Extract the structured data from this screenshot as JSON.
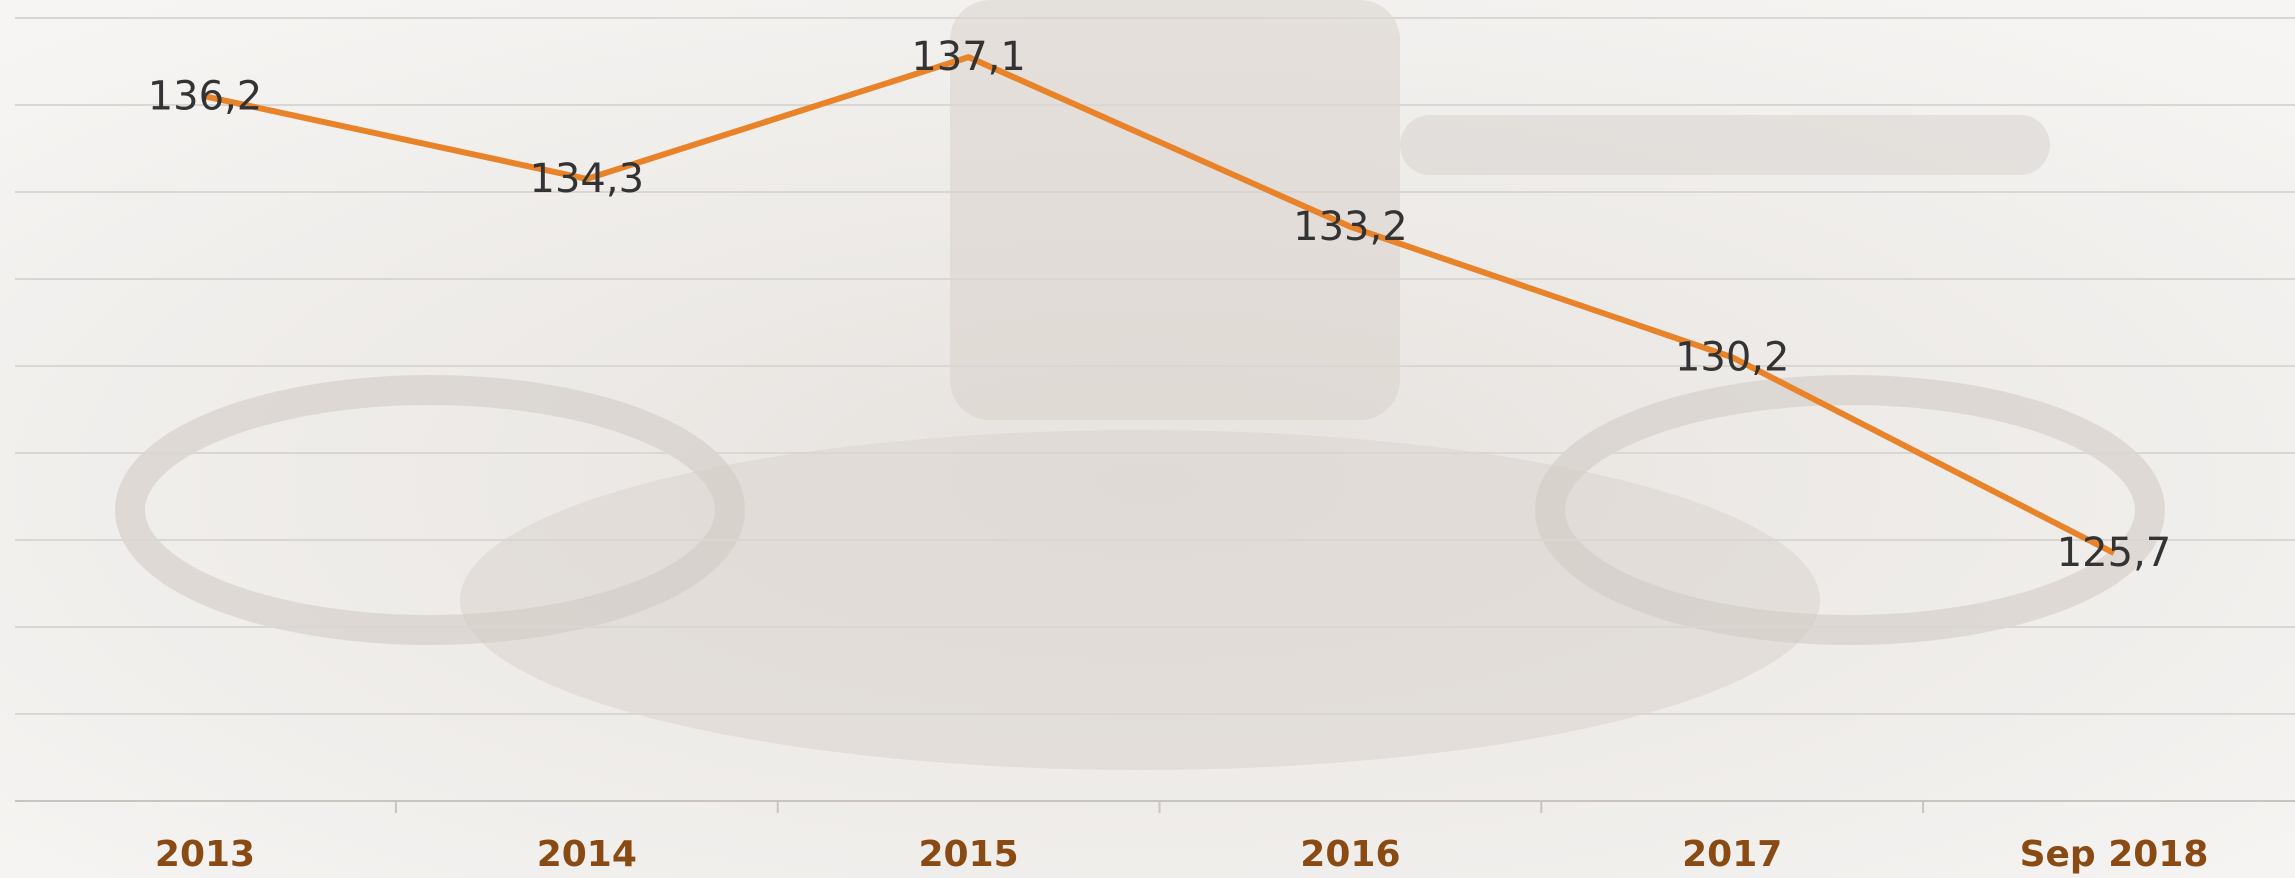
{
  "chart_data": {
    "type": "line",
    "categories": [
      "2013",
      "2014",
      "2015",
      "2016",
      "2017",
      "Sep 2018"
    ],
    "series": [
      {
        "color": "#e8832a",
        "values": [
          136.2,
          134.3,
          137.1,
          133.2,
          130.2,
          125.7
        ],
        "value_labels": [
          "136,2",
          "134,3",
          "137,1",
          "133,2",
          "130,2",
          "125,7"
        ]
      }
    ],
    "ylim": [
      120,
      138
    ],
    "yticks": [
      120,
      122,
      124,
      126,
      128,
      130,
      132,
      134,
      136,
      138
    ],
    "grid": true
  }
}
